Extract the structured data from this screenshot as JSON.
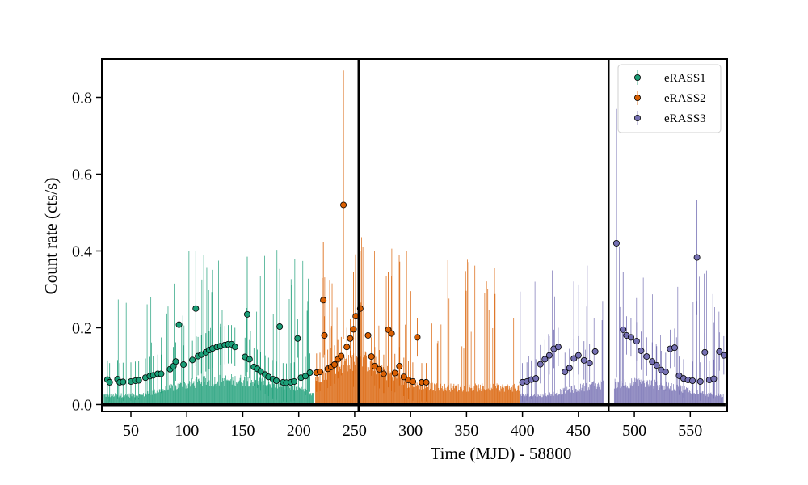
{
  "chart_data": {
    "type": "scatter",
    "xlabel": "Time (MJD) - 58800",
    "ylabel": "Count rate (cts/s)",
    "xlim": [
      24,
      583
    ],
    "ylim": [
      -0.018,
      0.9
    ],
    "x_ticks": [
      50,
      100,
      150,
      200,
      250,
      300,
      350,
      400,
      450,
      500,
      550
    ],
    "y_ticks": [
      0.0,
      0.2,
      0.4,
      0.6,
      0.8
    ],
    "y_tick_labels": [
      "0.0",
      "0.2",
      "0.4",
      "0.6",
      "0.8"
    ],
    "vertical_lines_x": [
      253.5,
      477
    ],
    "legend_position": "top-right",
    "grid": false,
    "series": [
      {
        "name": "eRASS1",
        "color": "#1b9e77",
        "x_range": [
          26,
          214
        ],
        "points": [
          [
            29,
            0.065
          ],
          [
            31,
            0.058
          ],
          [
            38,
            0.066
          ],
          [
            40,
            0.058
          ],
          [
            43,
            0.059
          ],
          [
            50,
            0.06
          ],
          [
            54,
            0.062
          ],
          [
            57,
            0.063
          ],
          [
            63,
            0.07
          ],
          [
            67,
            0.074
          ],
          [
            70,
            0.076
          ],
          [
            74,
            0.08
          ],
          [
            77,
            0.08
          ],
          [
            85,
            0.092
          ],
          [
            88,
            0.1
          ],
          [
            90,
            0.112
          ],
          [
            93,
            0.208
          ],
          [
            97,
            0.104
          ],
          [
            105,
            0.116
          ],
          [
            108,
            0.25
          ],
          [
            110,
            0.126
          ],
          [
            113,
            0.13
          ],
          [
            117,
            0.136
          ],
          [
            120,
            0.142
          ],
          [
            123,
            0.146
          ],
          [
            127,
            0.15
          ],
          [
            130,
            0.152
          ],
          [
            134,
            0.155
          ],
          [
            137,
            0.157
          ],
          [
            140,
            0.157
          ],
          [
            143,
            0.15
          ],
          [
            152,
            0.124
          ],
          [
            154,
            0.235
          ],
          [
            156,
            0.118
          ],
          [
            160,
            0.098
          ],
          [
            163,
            0.093
          ],
          [
            166,
            0.086
          ],
          [
            170,
            0.078
          ],
          [
            173,
            0.072
          ],
          [
            177,
            0.066
          ],
          [
            180,
            0.062
          ],
          [
            183,
            0.203
          ],
          [
            186,
            0.058
          ],
          [
            189,
            0.057
          ],
          [
            193,
            0.058
          ],
          [
            196,
            0.06
          ],
          [
            199,
            0.172
          ],
          [
            202,
            0.07
          ],
          [
            206,
            0.074
          ],
          [
            210,
            0.083
          ]
        ]
      },
      {
        "name": "eRASS2",
        "color": "#d95f02",
        "x_range": [
          215,
          398
        ],
        "points": [
          [
            216,
            0.083
          ],
          [
            219,
            0.085
          ],
          [
            222,
            0.272
          ],
          [
            223,
            0.18
          ],
          [
            226,
            0.093
          ],
          [
            229,
            0.098
          ],
          [
            232,
            0.104
          ],
          [
            235,
            0.118
          ],
          [
            238,
            0.126
          ],
          [
            240,
            0.52
          ],
          [
            243,
            0.15
          ],
          [
            246,
            0.172
          ],
          [
            249,
            0.196
          ],
          [
            251,
            0.23
          ],
          [
            255,
            0.25
          ],
          [
            262,
            0.18
          ],
          [
            265,
            0.125
          ],
          [
            268,
            0.1
          ],
          [
            272,
            0.092
          ],
          [
            276,
            0.08
          ],
          [
            280,
            0.195
          ],
          [
            283,
            0.185
          ],
          [
            286,
            0.082
          ],
          [
            290,
            0.1
          ],
          [
            294,
            0.072
          ],
          [
            298,
            0.064
          ],
          [
            302,
            0.06
          ],
          [
            306,
            0.175
          ],
          [
            310,
            0.058
          ],
          [
            314,
            0.058
          ]
        ]
      },
      {
        "name": "eRASS3",
        "color": "#7570b3",
        "x_range": [
          398,
          580
        ],
        "points": [
          [
            400,
            0.058
          ],
          [
            404,
            0.06
          ],
          [
            408,
            0.065
          ],
          [
            412,
            0.068
          ],
          [
            416,
            0.105
          ],
          [
            420,
            0.118
          ],
          [
            424,
            0.128
          ],
          [
            428,
            0.145
          ],
          [
            432,
            0.15
          ],
          [
            438,
            0.085
          ],
          [
            442,
            0.095
          ],
          [
            446,
            0.12
          ],
          [
            450,
            0.128
          ],
          [
            455,
            0.115
          ],
          [
            460,
            0.108
          ],
          [
            465,
            0.138
          ],
          [
            484,
            0.42
          ],
          [
            490,
            0.195
          ],
          [
            493,
            0.18
          ],
          [
            497,
            0.175
          ],
          [
            502,
            0.165
          ],
          [
            506,
            0.14
          ],
          [
            511,
            0.125
          ],
          [
            516,
            0.112
          ],
          [
            520,
            0.102
          ],
          [
            524,
            0.09
          ],
          [
            528,
            0.085
          ],
          [
            532,
            0.145
          ],
          [
            536,
            0.148
          ],
          [
            540,
            0.075
          ],
          [
            544,
            0.068
          ],
          [
            548,
            0.064
          ],
          [
            552,
            0.062
          ],
          [
            556,
            0.383
          ],
          [
            559,
            0.06
          ],
          [
            563,
            0.136
          ],
          [
            567,
            0.064
          ],
          [
            571,
            0.067
          ],
          [
            576,
            0.138
          ],
          [
            580,
            0.128
          ]
        ]
      }
    ]
  }
}
